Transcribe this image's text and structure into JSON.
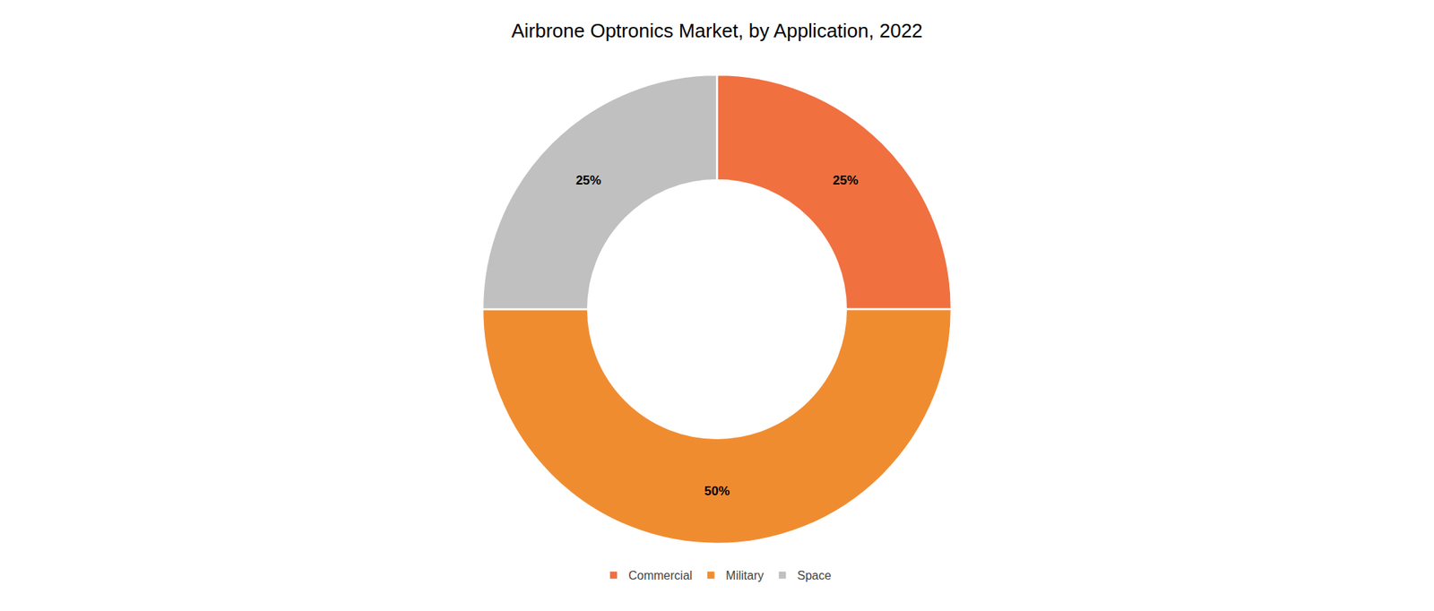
{
  "chart_data": {
    "type": "pie",
    "donut": true,
    "title": "Airbrone Optronics Market, by Application, 2022",
    "categories": [
      "Commercial",
      "Military",
      "Space"
    ],
    "values": [
      25,
      50,
      25
    ],
    "value_labels": [
      "25%",
      "50%",
      "25%"
    ],
    "colors": [
      "#F07040",
      "#F08C30",
      "#C0C0C0"
    ],
    "data_labels": true,
    "legend": "bottom"
  }
}
